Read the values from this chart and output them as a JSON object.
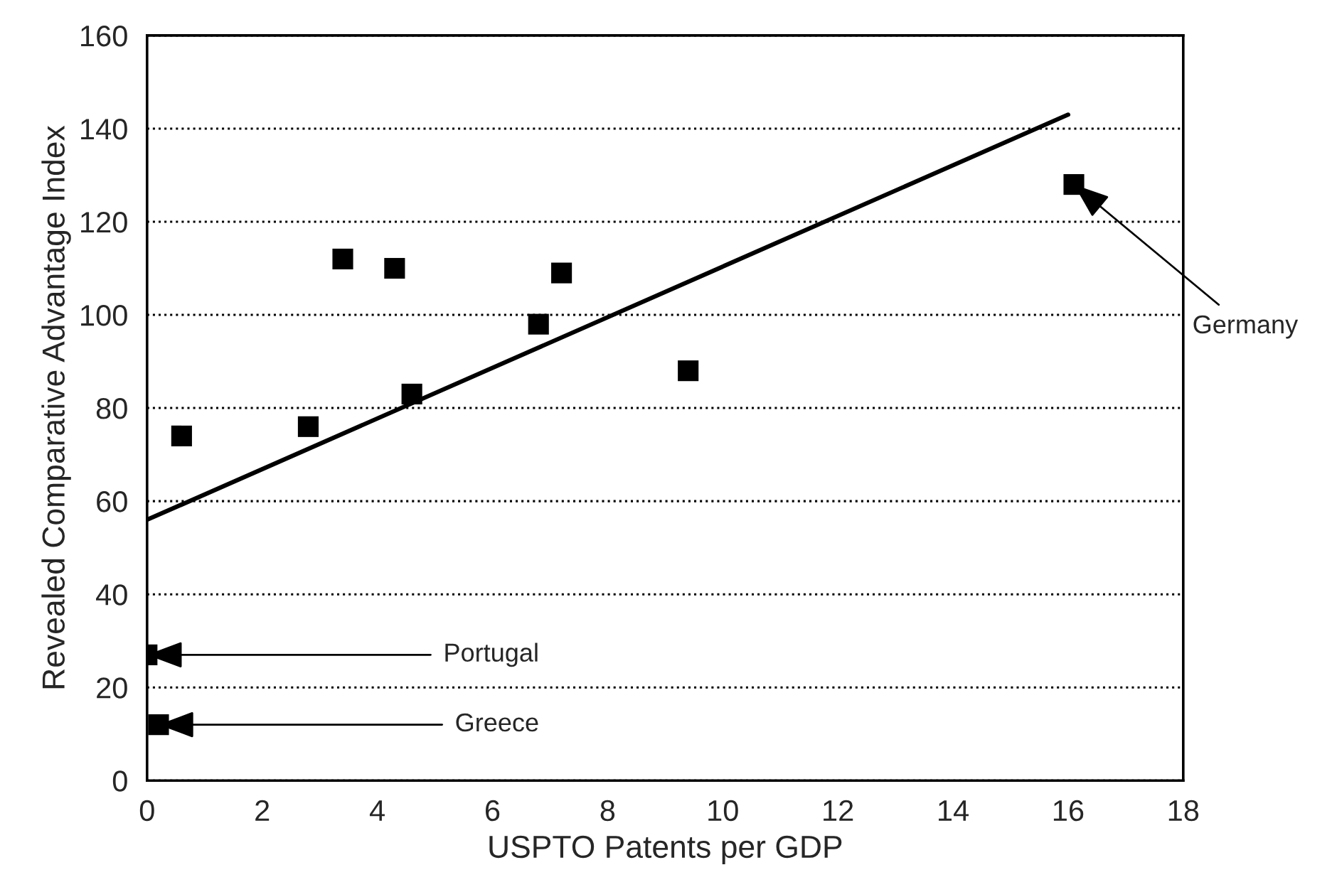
{
  "chart_data": {
    "type": "scatter",
    "xlabel": "USPTO Patents per GDP",
    "ylabel": "Revealed Comparative Advantage Index",
    "series": [
      {
        "type": "scatter",
        "color": "#000000",
        "marker": "square",
        "x": [
          0.6,
          2.8,
          3.4,
          4.3,
          4.6,
          6.8,
          7.2,
          9.4,
          16.1,
          0,
          0.2
        ],
        "values": [
          74,
          76,
          112,
          110,
          83,
          98,
          109,
          88,
          128,
          27,
          12
        ]
      },
      {
        "type": "line",
        "color": "#000000",
        "marker": "none",
        "line_style": "solid",
        "x": [
          0,
          16
        ],
        "values": [
          56,
          143
        ]
      }
    ],
    "xlim": [
      0,
      18
    ],
    "xticks": [
      0,
      2,
      4,
      6,
      8,
      10,
      12,
      14,
      16,
      18
    ],
    "ylim": [
      0,
      160
    ],
    "yticks": [
      0,
      20,
      40,
      60,
      80,
      100,
      120,
      140,
      160
    ],
    "grid": "y",
    "legend": false,
    "annotations": [
      {
        "text": "Portugal",
        "x": 0,
        "y": 27
      },
      {
        "text": "Greece",
        "x": 0.2,
        "y": 12
      },
      {
        "text": "Germany",
        "x": 16.1,
        "y": 128
      }
    ]
  }
}
